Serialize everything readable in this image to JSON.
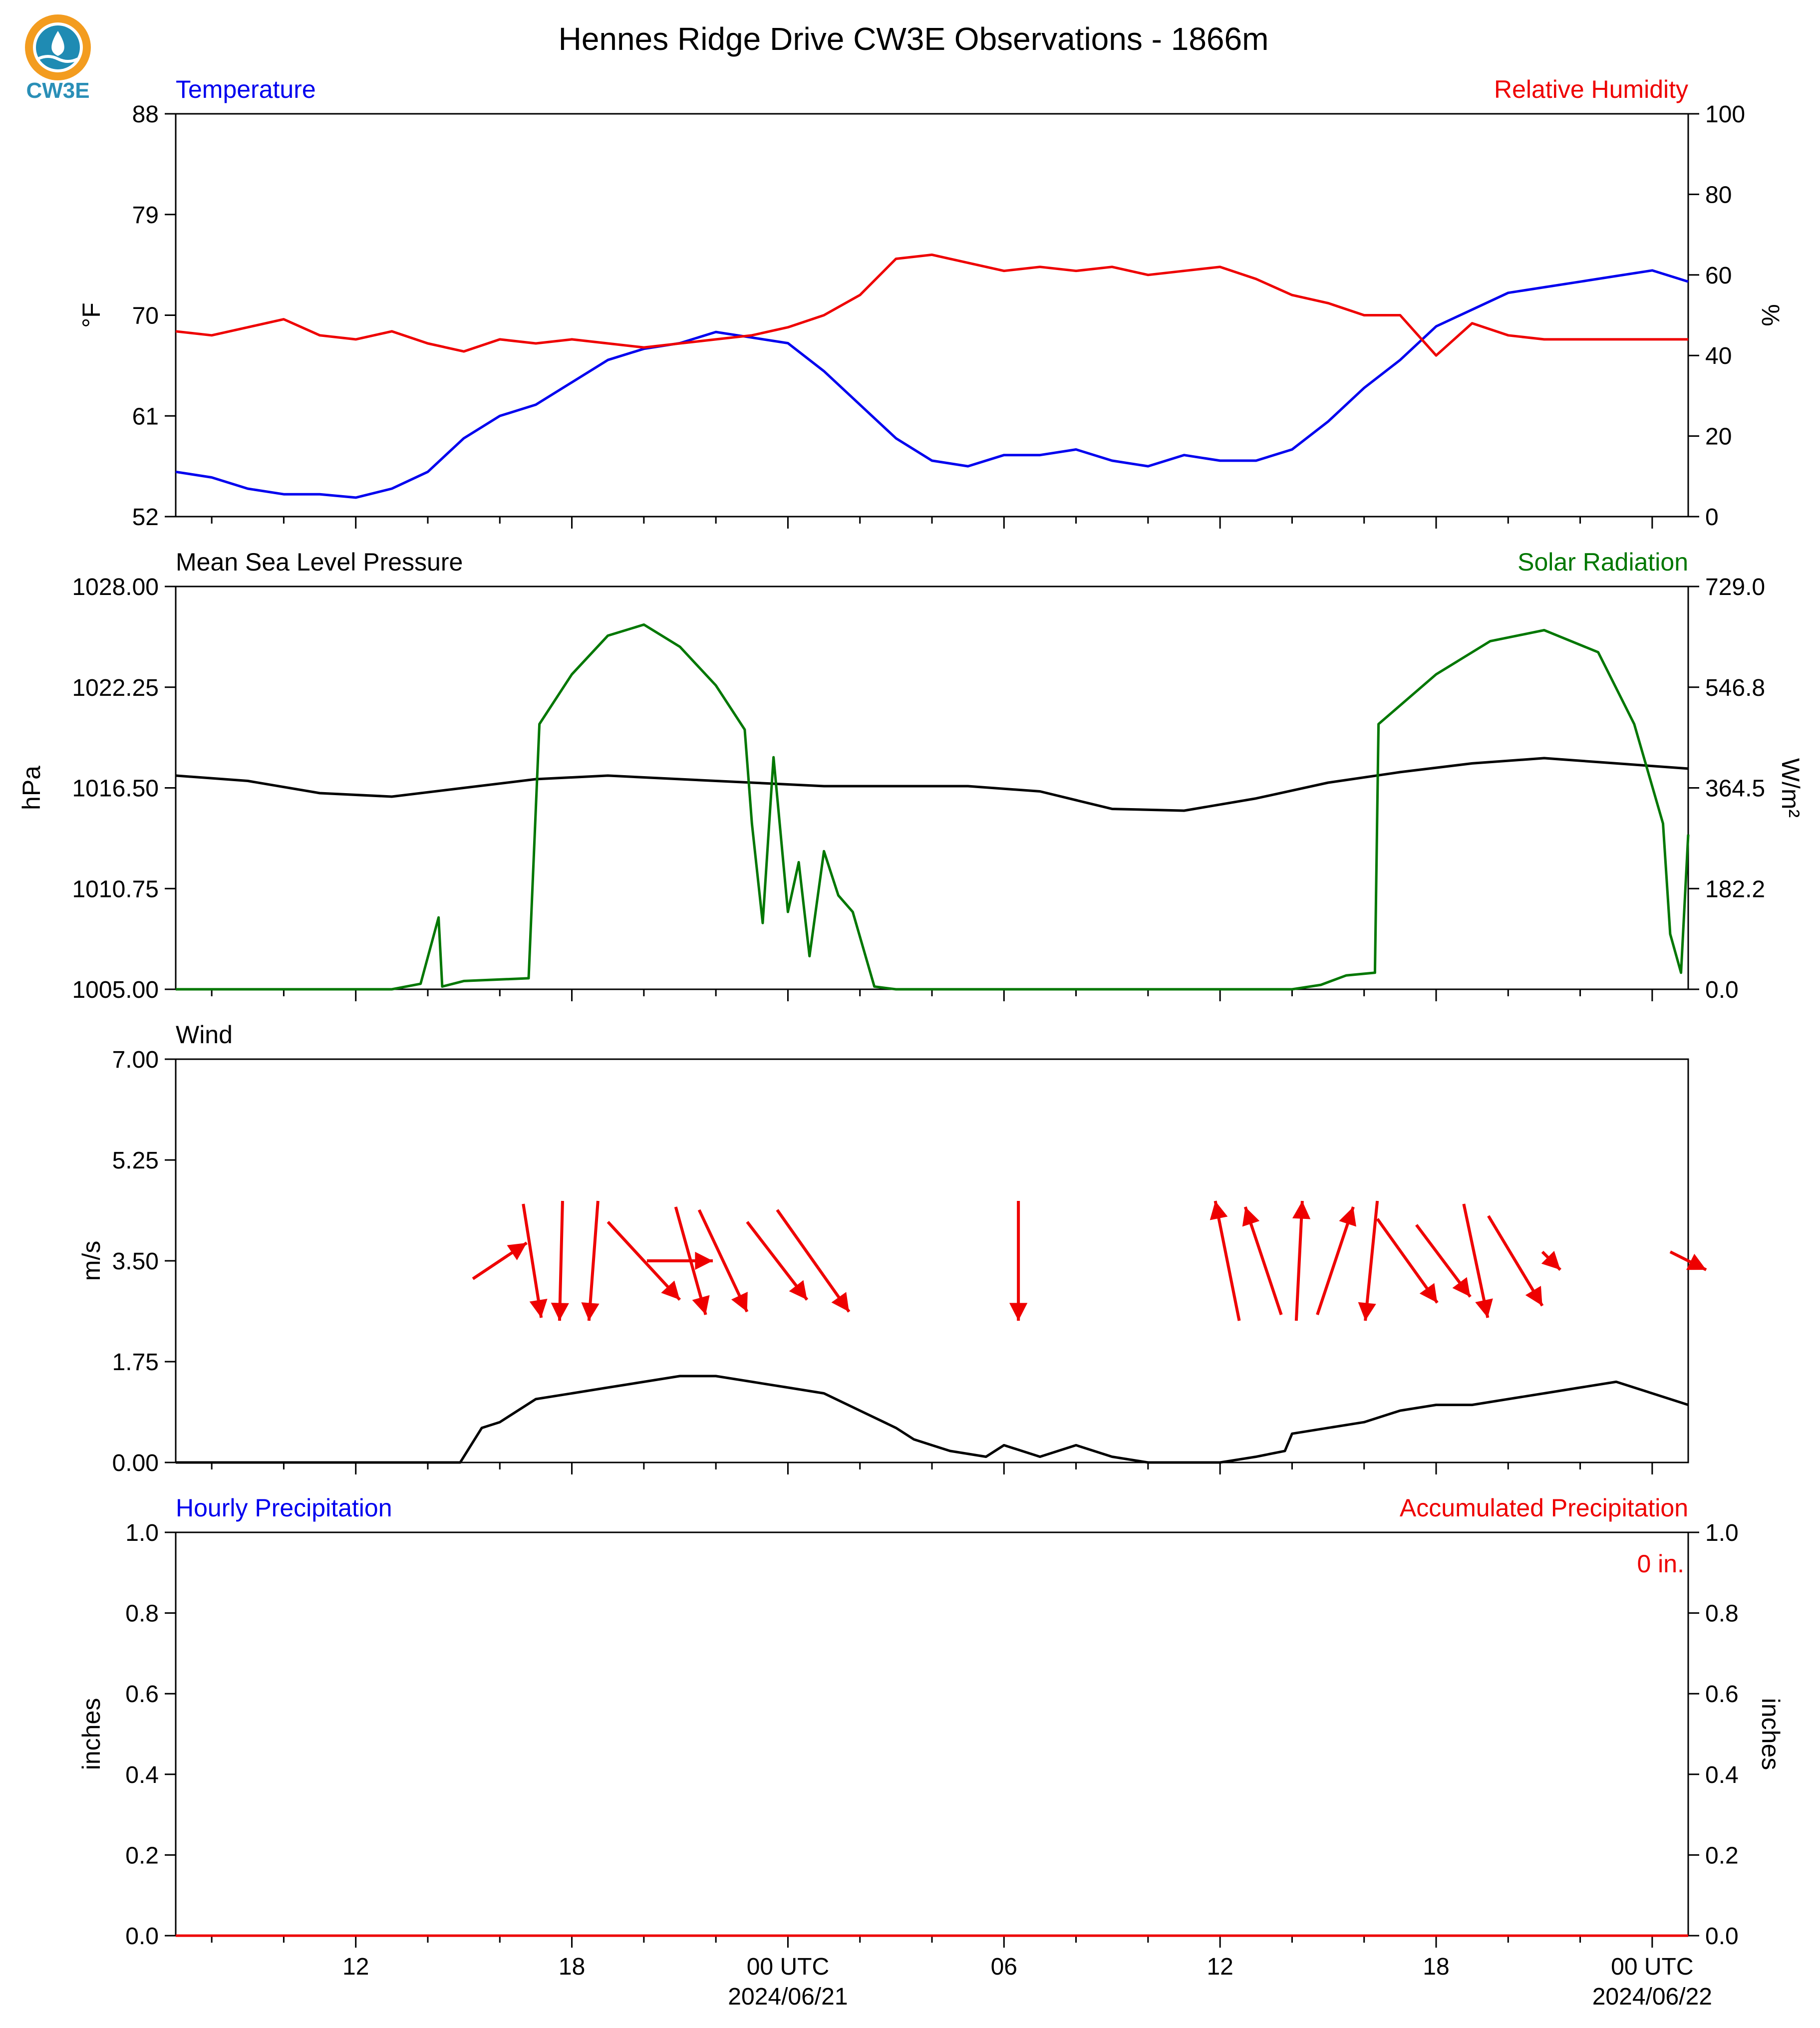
{
  "title": "Hennes Ridge Drive CW3E Observations - 1866m",
  "logo": {
    "text": "CW3E",
    "colors": {
      "orange": "#f39c1f",
      "teal": "#1f8bb3",
      "text": "#2a8fb7"
    }
  },
  "x_axis": {
    "hour_ticks": [
      "12",
      "18",
      "00 UTC",
      "06",
      "12",
      "18",
      "00 UTC"
    ],
    "date_labels": [
      "2024/06/21",
      "2024/06/22"
    ],
    "range_hours_from_2024_06_20_00utc": [
      7,
      49
    ]
  },
  "chart_data": [
    {
      "type": "line",
      "panel": "temperature_humidity",
      "left_title": "Temperature",
      "right_title": "Relative Humidity",
      "left_ylabel": "°F",
      "right_ylabel": "%",
      "left_ylim": [
        52,
        88
      ],
      "left_ticks": [
        "88",
        "79",
        "70",
        "61",
        "52"
      ],
      "right_ylim": [
        0,
        100
      ],
      "right_ticks": [
        "100",
        "80",
        "60",
        "40",
        "20",
        "0"
      ],
      "colors": {
        "temperature": "#0000ee",
        "humidity": "#ee0000"
      },
      "series": [
        {
          "name": "Temperature",
          "axis": "left",
          "x_hours": [
            7,
            8,
            9,
            10,
            11,
            12,
            13,
            14,
            15,
            16,
            17,
            18,
            19,
            20,
            21,
            22,
            23,
            24,
            25,
            26,
            27,
            28,
            29,
            30,
            31,
            32,
            33,
            34,
            35,
            36,
            37,
            38,
            39,
            40,
            41,
            42,
            43,
            44,
            45,
            46,
            47,
            48,
            49
          ],
          "values": [
            56,
            55.5,
            54.5,
            54,
            54,
            53.7,
            54.5,
            56,
            59,
            61,
            62,
            64,
            66,
            67,
            67.5,
            68.5,
            68,
            67.5,
            65,
            62,
            59,
            57,
            56.5,
            57.5,
            57.5,
            58,
            57,
            56.5,
            57.5,
            57,
            57,
            58,
            60.5,
            63.5,
            66,
            69,
            70.5,
            72,
            72.5,
            73,
            73.5,
            74,
            73
          ]
        },
        {
          "name": "Relative Humidity",
          "axis": "right",
          "x_hours": [
            7,
            8,
            9,
            10,
            11,
            12,
            13,
            14,
            15,
            16,
            17,
            18,
            19,
            20,
            21,
            22,
            23,
            24,
            25,
            26,
            27,
            28,
            29,
            30,
            31,
            32,
            33,
            34,
            35,
            36,
            37,
            38,
            39,
            40,
            41,
            42,
            43,
            44,
            45,
            46,
            47,
            48,
            49
          ],
          "values": [
            46,
            45,
            47,
            49,
            45,
            44,
            46,
            43,
            41,
            44,
            43,
            44,
            43,
            42,
            43,
            44,
            45,
            47,
            50,
            55,
            64,
            65,
            63,
            61,
            62,
            61,
            62,
            60,
            61,
            62,
            59,
            55,
            53,
            50,
            50,
            40,
            48,
            45,
            44,
            44,
            44,
            44,
            44
          ]
        }
      ]
    },
    {
      "type": "line",
      "panel": "pressure_solar",
      "left_title": "Mean Sea Level Pressure",
      "right_title": "Solar Radiation",
      "left_ylabel": "hPa",
      "right_ylabel": "W/m²",
      "left_ylim": [
        1005,
        1028
      ],
      "left_ticks": [
        "1028.00",
        "1022.25",
        "1016.50",
        "1010.75",
        "1005.00"
      ],
      "right_ylim": [
        0,
        729
      ],
      "right_ticks": [
        "729.0",
        "546.8",
        "364.5",
        "182.2",
        "0.0"
      ],
      "colors": {
        "pressure": "#000000",
        "solar": "#007700"
      },
      "series": [
        {
          "name": "Mean Sea Level Pressure",
          "axis": "left",
          "x_hours": [
            7,
            9,
            11,
            13,
            15,
            17,
            19,
            21,
            23,
            25,
            27,
            29,
            31,
            33,
            35,
            37,
            39,
            41,
            43,
            45,
            47,
            49
          ],
          "values": [
            1017.2,
            1016.9,
            1016.2,
            1016.0,
            1016.5,
            1017.0,
            1017.2,
            1017.0,
            1016.8,
            1016.6,
            1016.6,
            1016.6,
            1016.3,
            1015.3,
            1015.2,
            1015.9,
            1016.8,
            1017.4,
            1017.9,
            1018.2,
            1017.9,
            1017.6
          ]
        },
        {
          "name": "Solar Radiation",
          "axis": "right",
          "x_hours": [
            7,
            13,
            13.8,
            14.3,
            14.4,
            15,
            16.8,
            17.1,
            18,
            19,
            20,
            21,
            22,
            22.8,
            23,
            23.3,
            23.6,
            24,
            24.3,
            24.6,
            25,
            25.4,
            25.8,
            26.4,
            27,
            38,
            38.8,
            39.5,
            40.3,
            40.4,
            42,
            43.5,
            45,
            46.5,
            47.5,
            48.3,
            48.5,
            48.8,
            49
          ],
          "values": [
            0,
            0,
            10,
            130,
            5,
            15,
            20,
            480,
            570,
            640,
            660,
            620,
            550,
            470,
            300,
            120,
            420,
            140,
            230,
            60,
            250,
            170,
            140,
            5,
            0,
            0,
            8,
            25,
            30,
            480,
            570,
            630,
            650,
            610,
            480,
            300,
            100,
            30,
            280
          ]
        }
      ]
    },
    {
      "type": "line",
      "panel": "wind",
      "left_title": "Wind",
      "left_ylabel": "m/s",
      "left_ylim": [
        0,
        7
      ],
      "left_ticks": [
        "7.00",
        "5.25",
        "3.50",
        "1.75",
        "0.00"
      ],
      "colors": {
        "speed": "#000000",
        "barbs": "#ee0000"
      },
      "series": [
        {
          "name": "Wind Speed",
          "axis": "left",
          "x_hours": [
            7,
            14.9,
            15.5,
            16,
            17,
            18,
            19,
            20,
            21,
            22,
            23,
            24,
            25,
            26,
            27,
            27.5,
            28,
            28.5,
            29.5,
            30,
            31,
            32,
            33,
            34,
            35,
            36,
            37,
            37.8,
            38,
            39,
            40,
            41,
            42,
            43,
            44,
            45,
            46,
            47,
            48,
            49
          ],
          "values": [
            0,
            0,
            0.6,
            0.7,
            1.1,
            1.2,
            1.3,
            1.4,
            1.5,
            1.5,
            1.4,
            1.3,
            1.2,
            0.9,
            0.6,
            0.4,
            0.3,
            0.2,
            0.1,
            0.3,
            0.1,
            0.3,
            0.1,
            0,
            0,
            0,
            0.1,
            0.2,
            0.5,
            0.6,
            0.7,
            0.9,
            1.0,
            1.0,
            1.1,
            1.2,
            1.3,
            1.4,
            1.2,
            1.0
          ]
        }
      ],
      "wind_vectors": [
        {
          "x_hours": 16.0,
          "u": 0.9,
          "v": 0.6
        },
        {
          "x_hours": 16.9,
          "u": 0.3,
          "v": -1.9
        },
        {
          "x_hours": 17.7,
          "u": -0.05,
          "v": -2.0
        },
        {
          "x_hours": 18.6,
          "u": -0.15,
          "v": -2.0
        },
        {
          "x_hours": 20.0,
          "u": 1.2,
          "v": -1.3
        },
        {
          "x_hours": 21.0,
          "u": 1.1,
          "v": 0.0
        },
        {
          "x_hours": 21.3,
          "u": 0.5,
          "v": -1.8
        },
        {
          "x_hours": 22.2,
          "u": 0.8,
          "v": -1.7
        },
        {
          "x_hours": 23.7,
          "u": 1.0,
          "v": -1.3
        },
        {
          "x_hours": 24.7,
          "u": 1.2,
          "v": -1.7
        },
        {
          "x_hours": 30.4,
          "u": 0.0,
          "v": -2.0
        },
        {
          "x_hours": 36.2,
          "u": -0.4,
          "v": 2.0
        },
        {
          "x_hours": 37.2,
          "u": -0.6,
          "v": 1.8
        },
        {
          "x_hours": 38.2,
          "u": 0.1,
          "v": 2.0
        },
        {
          "x_hours": 39.2,
          "u": 0.6,
          "v": 1.8
        },
        {
          "x_hours": 40.2,
          "u": -0.2,
          "v": -2.0
        },
        {
          "x_hours": 41.2,
          "u": 1.0,
          "v": -1.4
        },
        {
          "x_hours": 42.2,
          "u": 0.9,
          "v": -1.2
        },
        {
          "x_hours": 43.1,
          "u": 0.4,
          "v": -1.9
        },
        {
          "x_hours": 44.2,
          "u": 0.9,
          "v": -1.5
        },
        {
          "x_hours": 45.2,
          "u": 0.3,
          "v": -0.3
        },
        {
          "x_hours": 49.0,
          "u": 0.6,
          "v": -0.3
        }
      ]
    },
    {
      "type": "line",
      "panel": "precipitation",
      "left_title": "Hourly Precipitation",
      "right_title": "Accumulated Precipitation",
      "left_ylabel": "inches",
      "right_ylabel": "inches",
      "left_ylim": [
        0,
        1
      ],
      "left_ticks": [
        "1.0",
        "0.8",
        "0.6",
        "0.4",
        "0.2",
        "0.0"
      ],
      "right_ylim": [
        0,
        1
      ],
      "right_ticks": [
        "1.0",
        "0.8",
        "0.6",
        "0.4",
        "0.2",
        "0.0"
      ],
      "annotation": "0 in.",
      "colors": {
        "hourly": "#0000ee",
        "accumulated": "#ee0000"
      },
      "series": [
        {
          "name": "Hourly Precipitation",
          "axis": "left",
          "x_hours": [
            7,
            49
          ],
          "values": [
            0,
            0
          ]
        },
        {
          "name": "Accumulated Precipitation",
          "axis": "right",
          "x_hours": [
            7,
            49
          ],
          "values": [
            0,
            0
          ]
        }
      ]
    }
  ]
}
